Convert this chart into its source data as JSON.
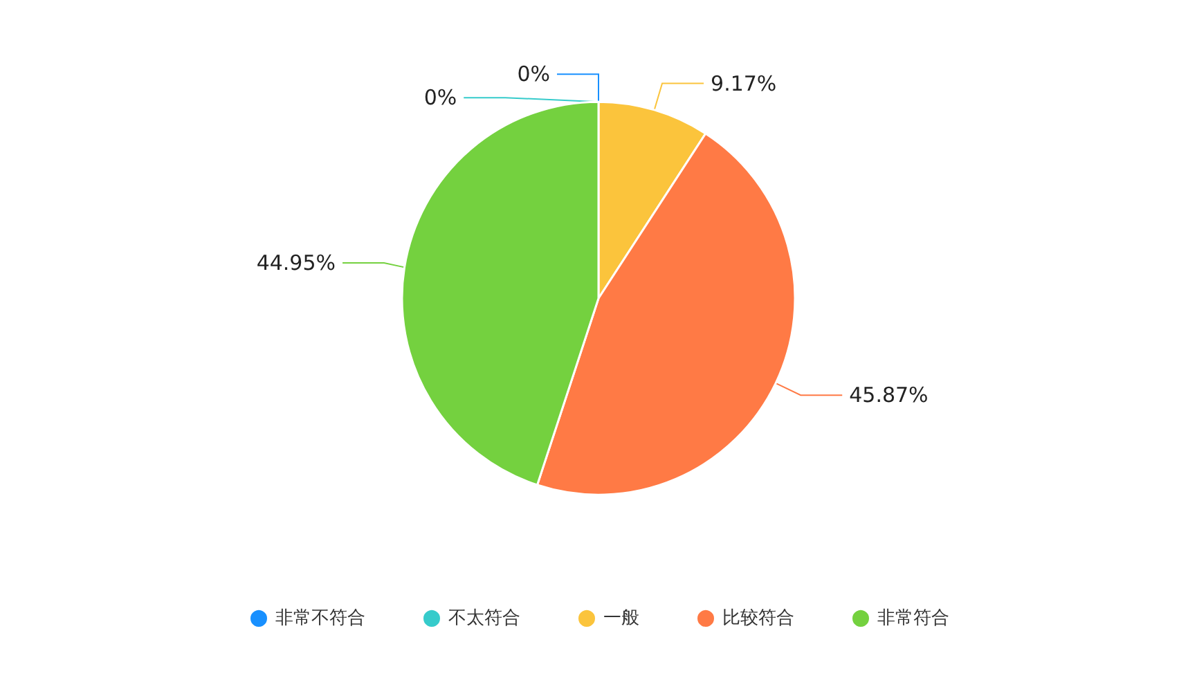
{
  "chart_data": {
    "type": "pie",
    "categories": [
      "非常不符合",
      "不太符合",
      "一般",
      "比较符合",
      "非常符合"
    ],
    "values": [
      0,
      0,
      9.17,
      45.87,
      44.95
    ],
    "colors": [
      "#1890ff",
      "#36cbcb",
      "#fbc43c",
      "#ff7a45",
      "#74d13f"
    ],
    "value_labels": [
      "0%",
      "0%",
      "9.17%",
      "45.87%",
      "44.95%"
    ],
    "legend": "bottom"
  }
}
